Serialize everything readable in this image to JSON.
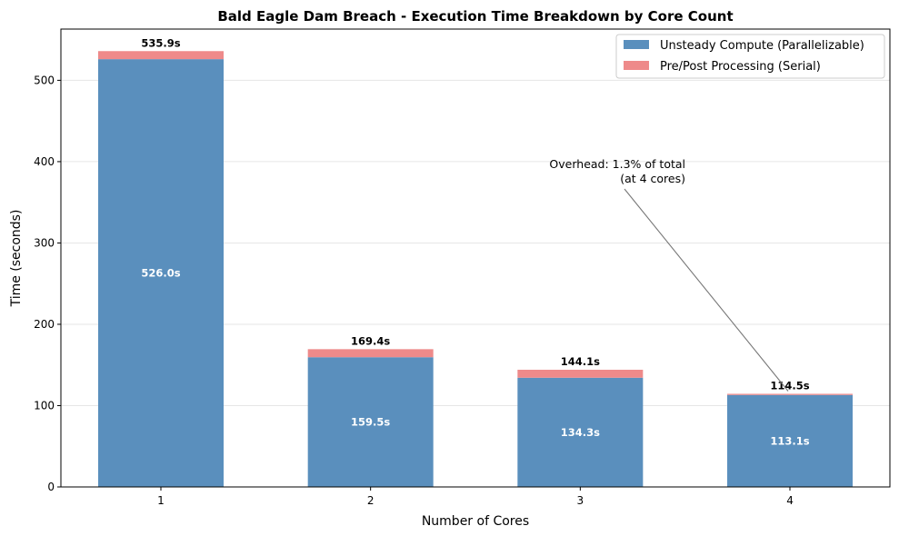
{
  "chart_data": {
    "type": "bar",
    "stacked": true,
    "title": "Bald Eagle Dam Breach - Execution Time Breakdown by Core Count",
    "xlabel": "Number of Cores",
    "ylabel": "Time (seconds)",
    "categories": [
      "1",
      "2",
      "3",
      "4"
    ],
    "ylim": [
      0,
      563
    ],
    "yticks": [
      0,
      100,
      200,
      300,
      400,
      500
    ],
    "grid": "y",
    "legend_position": "top-right",
    "series": [
      {
        "name": "Unsteady Compute (Parallelizable)",
        "color": "#5a8fbd",
        "values": [
          526.0,
          159.5,
          134.3,
          113.1
        ]
      },
      {
        "name": "Pre/Post Processing (Serial)",
        "color": "#ee8a8a",
        "values": [
          9.9,
          9.9,
          9.8,
          1.4
        ]
      }
    ],
    "segment_labels": [
      "526.0s",
      "159.5s",
      "134.3s",
      "113.1s"
    ],
    "total_labels": [
      "535.9s",
      "169.4s",
      "144.1s",
      "114.5s"
    ],
    "annotation": {
      "lines": [
        "Overhead: 1.3% of total",
        "(at 4 cores)"
      ],
      "points_to_category": "4",
      "points_to_value": 114.5
    }
  }
}
